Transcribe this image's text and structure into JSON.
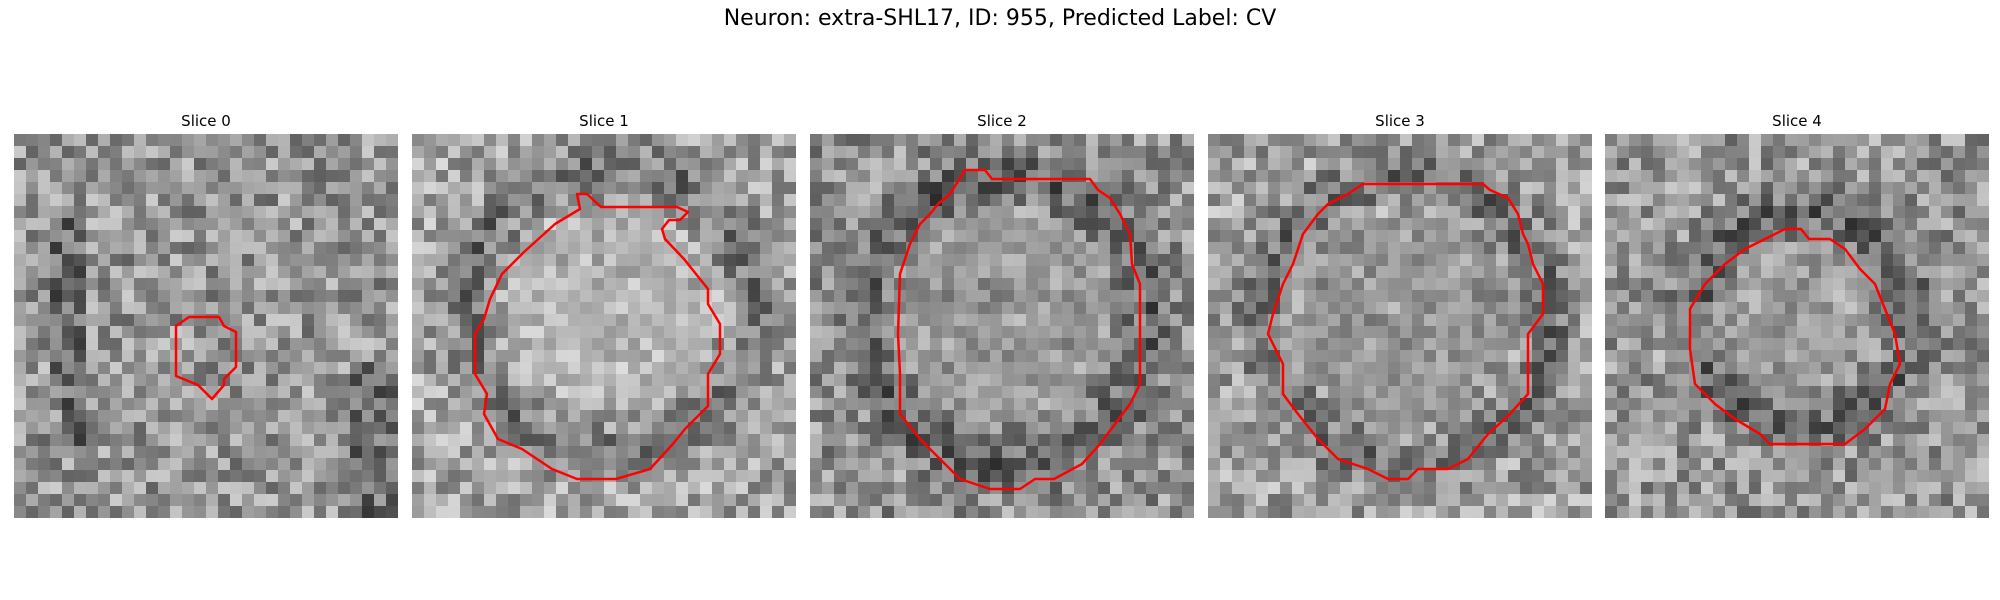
{
  "figure": {
    "title": "Neuron: extra-SHL17, ID: 955, Predicted Label: CV"
  },
  "colors": {
    "contour": "#ff0000",
    "background": "#ffffff"
  },
  "image_content": "grayscale noisy microscopy patches with a red segmentation contour outlining a roughly circular cell body; contour grows from a small blob in slice 0 to a large circle in slices 1-3 and a medium circle in slice 4",
  "panels": [
    {
      "title": "Slice 0"
    },
    {
      "title": "Slice 1"
    },
    {
      "title": "Slice 2"
    },
    {
      "title": "Slice 3"
    },
    {
      "title": "Slice 4"
    }
  ]
}
